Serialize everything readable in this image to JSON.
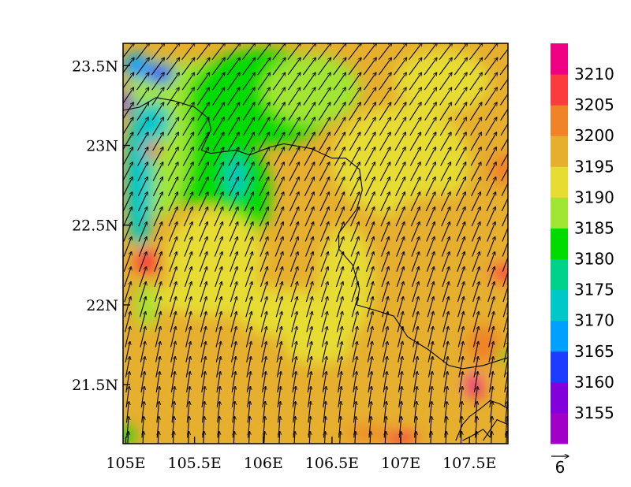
{
  "chart_data": {
    "type": "heatmap",
    "title": "",
    "xlabel": "",
    "ylabel": "",
    "xlim": [
      104.98,
      107.78
    ],
    "ylim": [
      21.13,
      23.64
    ],
    "x_ticks": [
      {
        "value": 105.0,
        "label": "105E"
      },
      {
        "value": 105.5,
        "label": "105.5E"
      },
      {
        "value": 106.0,
        "label": "106E"
      },
      {
        "value": 106.5,
        "label": "106.5E"
      },
      {
        "value": 107.0,
        "label": "107E"
      },
      {
        "value": 107.5,
        "label": "107.5E"
      }
    ],
    "y_ticks": [
      {
        "value": 21.5,
        "label": "21.5N"
      },
      {
        "value": 22.0,
        "label": "22N"
      },
      {
        "value": 22.5,
        "label": "22.5N"
      },
      {
        "value": 23.0,
        "label": "23N"
      },
      {
        "value": 23.5,
        "label": "23.5N"
      }
    ],
    "colorbar": {
      "levels": [
        "3155",
        "3160",
        "3165",
        "3170",
        "3175",
        "3180",
        "3185",
        "3190",
        "3195",
        "3200",
        "3205",
        "3210"
      ],
      "colors": [
        "#a000c8",
        "#8200dc",
        "#1e3cff",
        "#00a0ff",
        "#00c8c8",
        "#00d28c",
        "#00dc00",
        "#a0e632",
        "#e6dc32",
        "#e6af2d",
        "#f08228",
        "#fa3c3c",
        "#f00082"
      ]
    },
    "field_patches": [
      {
        "lon": 105.55,
        "lat": 23.35,
        "rx": 0.55,
        "ry": 0.18,
        "value": 3187
      },
      {
        "lon": 106.0,
        "lat": 23.3,
        "rx": 0.55,
        "ry": 0.3,
        "value": 3184
      },
      {
        "lon": 106.35,
        "lat": 23.35,
        "rx": 0.35,
        "ry": 0.22,
        "value": 3186
      },
      {
        "lon": 105.5,
        "lat": 22.95,
        "rx": 0.42,
        "ry": 0.32,
        "value": 3183
      },
      {
        "lon": 105.85,
        "lat": 22.7,
        "rx": 0.2,
        "ry": 0.3,
        "value": 3183
      },
      {
        "lon": 105.25,
        "lat": 23.05,
        "rx": 0.22,
        "ry": 0.5,
        "value": 3186
      },
      {
        "lon": 105.1,
        "lat": 22.8,
        "rx": 0.1,
        "ry": 0.45,
        "value": 3172
      },
      {
        "lon": 105.2,
        "lat": 23.15,
        "rx": 0.12,
        "ry": 0.12,
        "value": 3170
      },
      {
        "lon": 105.8,
        "lat": 22.8,
        "rx": 0.07,
        "ry": 0.13,
        "value": 3172
      },
      {
        "lon": 105.08,
        "lat": 23.5,
        "rx": 0.1,
        "ry": 0.08,
        "value": 3166
      },
      {
        "lon": 105.25,
        "lat": 23.45,
        "rx": 0.1,
        "ry": 0.06,
        "value": 3164
      },
      {
        "lon": 105.0,
        "lat": 23.27,
        "rx": 0.05,
        "ry": 0.08,
        "value": 3158
      },
      {
        "lon": 105.15,
        "lat": 22.0,
        "rx": 0.08,
        "ry": 0.14,
        "value": 3187
      },
      {
        "lon": 105.65,
        "lat": 22.3,
        "rx": 0.35,
        "ry": 0.3,
        "value": 3191
      },
      {
        "lon": 105.65,
        "lat": 22.05,
        "rx": 0.45,
        "ry": 0.12,
        "value": 3193
      },
      {
        "lon": 106.2,
        "lat": 21.95,
        "rx": 0.4,
        "ry": 0.15,
        "value": 3192
      },
      {
        "lon": 106.6,
        "lat": 22.15,
        "rx": 0.2,
        "ry": 0.35,
        "value": 3191
      },
      {
        "lon": 106.4,
        "lat": 21.75,
        "rx": 0.25,
        "ry": 0.12,
        "value": 3191
      },
      {
        "lon": 107.0,
        "lat": 22.9,
        "rx": 0.5,
        "ry": 0.35,
        "value": 3193
      },
      {
        "lon": 107.3,
        "lat": 23.4,
        "rx": 0.35,
        "ry": 0.2,
        "value": 3192
      },
      {
        "lon": 107.3,
        "lat": 22.3,
        "rx": 0.5,
        "ry": 0.4,
        "value": 3197
      },
      {
        "lon": 105.7,
        "lat": 21.55,
        "rx": 0.35,
        "ry": 0.3,
        "value": 3197
      },
      {
        "lon": 106.75,
        "lat": 21.4,
        "rx": 0.35,
        "ry": 0.2,
        "value": 3197
      },
      {
        "lon": 107.4,
        "lat": 21.7,
        "rx": 0.3,
        "ry": 0.25,
        "value": 3197
      },
      {
        "lon": 107.75,
        "lat": 22.85,
        "rx": 0.1,
        "ry": 0.1,
        "value": 3203
      },
      {
        "lon": 107.75,
        "lat": 22.2,
        "rx": 0.1,
        "ry": 0.06,
        "value": 3206
      },
      {
        "lon": 105.15,
        "lat": 22.27,
        "rx": 0.08,
        "ry": 0.09,
        "value": 3206
      },
      {
        "lon": 105.2,
        "lat": 22.97,
        "rx": 0.05,
        "ry": 0.05,
        "value": 3206
      },
      {
        "lon": 107.6,
        "lat": 21.75,
        "rx": 0.12,
        "ry": 0.12,
        "value": 3203
      },
      {
        "lon": 107.53,
        "lat": 21.5,
        "rx": 0.07,
        "ry": 0.08,
        "value": 3211
      },
      {
        "lon": 107.0,
        "lat": 21.17,
        "rx": 0.12,
        "ry": 0.04,
        "value": 3208
      },
      {
        "lon": 106.75,
        "lat": 21.2,
        "rx": 0.15,
        "ry": 0.04,
        "value": 3203
      },
      {
        "lon": 105.0,
        "lat": 21.18,
        "rx": 0.06,
        "ry": 0.06,
        "value": 3184
      },
      {
        "lon": 107.75,
        "lat": 21.68,
        "rx": 0.04,
        "ry": 0.04,
        "value": 3180
      }
    ],
    "wind_field": {
      "description_free": true,
      "south_direction_deg_from_north": 3,
      "north_direction_deg_from_north": 38,
      "reference_vector": {
        "label": "6",
        "magnitude": 6
      }
    },
    "boundary_lines": [
      [
        [
          104.98,
          23.22
        ],
        [
          105.1,
          23.24
        ],
        [
          105.22,
          23.3
        ],
        [
          105.35,
          23.28
        ],
        [
          105.5,
          23.24
        ],
        [
          105.6,
          23.17
        ],
        [
          105.62,
          23.1
        ],
        [
          105.55,
          22.97
        ],
        [
          105.62,
          22.95
        ],
        [
          105.8,
          22.97
        ],
        [
          105.9,
          22.94
        ],
        [
          106.05,
          22.99
        ],
        [
          106.15,
          23.01
        ],
        [
          106.35,
          22.98
        ],
        [
          106.5,
          22.92
        ],
        [
          106.6,
          22.92
        ],
        [
          106.7,
          22.85
        ],
        [
          106.72,
          22.72
        ],
        [
          106.68,
          22.6
        ],
        [
          106.62,
          22.53
        ],
        [
          106.55,
          22.45
        ],
        [
          106.55,
          22.35
        ],
        [
          106.65,
          22.25
        ],
        [
          106.7,
          22.1
        ],
        [
          106.68,
          22.0
        ],
        [
          106.8,
          21.97
        ],
        [
          106.95,
          21.93
        ],
        [
          107.05,
          21.8
        ],
        [
          107.2,
          21.72
        ],
        [
          107.35,
          21.62
        ],
        [
          107.45,
          21.6
        ],
        [
          107.6,
          21.62
        ],
        [
          107.78,
          21.67
        ]
      ],
      [
        [
          107.4,
          21.15
        ],
        [
          107.45,
          21.25
        ],
        [
          107.5,
          21.3
        ],
        [
          107.58,
          21.35
        ],
        [
          107.65,
          21.4
        ],
        [
          107.72,
          21.38
        ],
        [
          107.78,
          21.35
        ]
      ],
      [
        [
          107.45,
          21.15
        ],
        [
          107.52,
          21.18
        ],
        [
          107.6,
          21.22
        ],
        [
          107.65,
          21.17
        ]
      ],
      [
        [
          107.6,
          21.15
        ],
        [
          107.7,
          21.28
        ],
        [
          107.78,
          21.25
        ]
      ]
    ]
  }
}
